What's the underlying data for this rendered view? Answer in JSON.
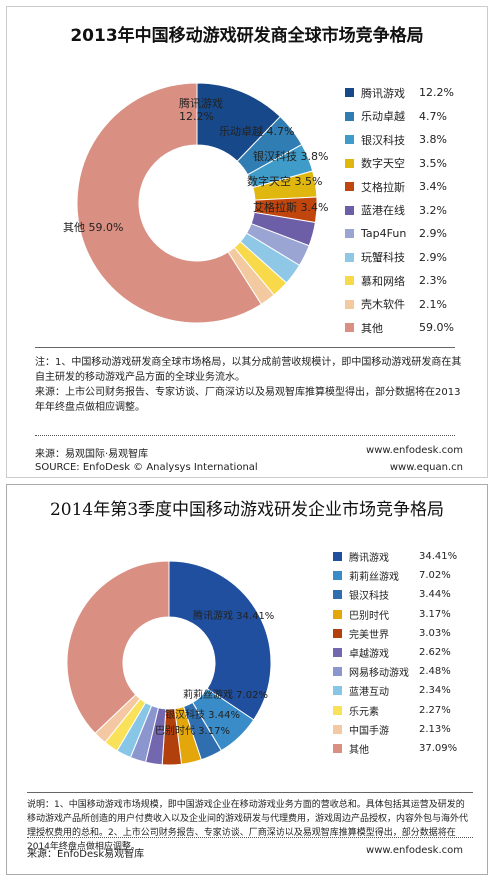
{
  "chart_data": [
    {
      "type": "pie",
      "title": "2013年中国移动游戏研发商全球市场竞争格局",
      "categories": [
        "腾讯游戏",
        "乐动卓越",
        "银汉科技",
        "数字天空",
        "艾格拉斯",
        "蓝港在线",
        "Tap4Fun",
        "玩蟹科技",
        "慕和网络",
        "壳木软件",
        "其他"
      ],
      "values": [
        12.2,
        4.7,
        3.8,
        3.5,
        3.4,
        3.2,
        2.9,
        2.9,
        2.3,
        2.1,
        59.0
      ],
      "labels": [
        "12.2%",
        "4.7%",
        "3.8%",
        "3.5%",
        "3.4%",
        "3.2%",
        "2.9%",
        "2.9%",
        "2.3%",
        "2.1%",
        "59.0%"
      ],
      "colors": [
        "#17488a",
        "#2f7db3",
        "#3f9cc9",
        "#e0b70f",
        "#c0460e",
        "#6c5fa8",
        "#9aa5d3",
        "#8fc8e6",
        "#f8d94a",
        "#f3c9a0",
        "#d98f82"
      ],
      "slice_labels": [
        {
          "name": "腾讯游戏",
          "value": "12.2%"
        },
        {
          "name": "乐动卓越",
          "value": "4.7%"
        },
        {
          "name": "银汉科技",
          "value": "3.8%"
        },
        {
          "name": "数字天空",
          "value": "3.5%"
        },
        {
          "name": "艾格拉斯",
          "value": "3.4%"
        },
        {
          "name": "其他",
          "value": "59.0%"
        }
      ],
      "notes": [
        "注：1、中国移动游戏研发商全球市场格局，以其分成前营收规模计，即中国移动游戏研发商在其自主研发的移动游戏产品方面的全球业务流水。",
        "来源：上市公司财务报告、专家访谈、厂商深访以及易观智库推算模型得出，部分数据将在2013年年终盘点做相应调整。"
      ],
      "footer": {
        "source_cn": "来源：易观国际·易观智库",
        "source_en": "SOURCE: EnfoDesk © Analysys International",
        "url1": "www.enfodesk.com",
        "url2": "www.equan.cn"
      }
    },
    {
      "type": "pie",
      "title": "2014年第3季度中国移动游戏研发企业市场竞争格局",
      "categories": [
        "腾讯游戏",
        "莉莉丝游戏",
        "银汉科技",
        "巴别时代",
        "完美世界",
        "卓越游戏",
        "网易移动游戏",
        "蓝港互动",
        "乐元素",
        "中国手游",
        "其他"
      ],
      "values": [
        34.41,
        7.02,
        3.44,
        3.17,
        3.03,
        2.62,
        2.48,
        2.34,
        2.27,
        2.13,
        37.09
      ],
      "labels": [
        "34.41%",
        "7.02%",
        "3.44%",
        "3.17%",
        "3.03%",
        "2.62%",
        "2.48%",
        "2.34%",
        "2.27%",
        "2.13%",
        "37.09%"
      ],
      "colors": [
        "#1f4f9e",
        "#3a8cc8",
        "#2f6fb0",
        "#e3a70c",
        "#b1400d",
        "#7367b0",
        "#8b96cf",
        "#88c6e8",
        "#fae15a",
        "#f5c8a4",
        "#d98f82"
      ],
      "slice_labels": [
        {
          "name": "腾讯游戏",
          "value": "34.41%"
        },
        {
          "name": "莉莉丝游戏",
          "value": "7.02%"
        },
        {
          "name": "银汉科技",
          "value": "3.44%"
        },
        {
          "name": "巴别时代",
          "value": "3.17%"
        }
      ],
      "notes": [
        "说明：1、中国移动游戏市场规模，即中国游戏企业在移动游戏业务方面的营收总和。具体包括其运营及研发的移动游戏产品所创造的用户付费收入以及企业间的游戏研发与代理费用，游戏周边产品授权，内容外包与海外代理授权费用的总和。2、上市公司财务报告、专家访谈、厂商深访以及易观智库推算模型得出，部分数据将在2014年终盘点做相应调整。"
      ],
      "footer": {
        "source_cn": "来源：EnfoDesk易观智库",
        "url1": "www.enfodesk.com"
      }
    }
  ]
}
